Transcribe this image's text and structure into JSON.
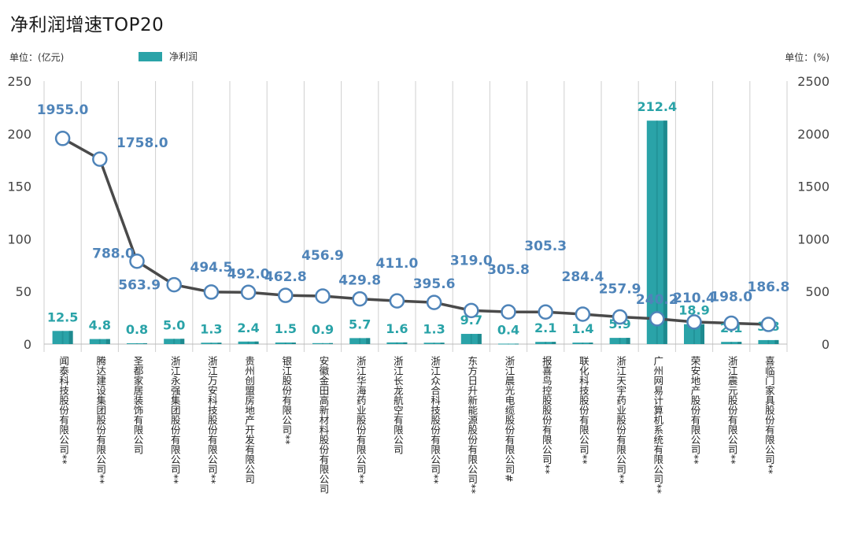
{
  "title": "净利润增速TOP20",
  "unit_left": "单位：(亿元)",
  "unit_right": "单位：(%)",
  "legend_label": "净利润",
  "colors": {
    "bar": "#2aa3a8",
    "bar_side": "#1e8a8f",
    "line": "#4a4a4a",
    "line_label": "#4f84b9",
    "grid": "#cfcfcf"
  },
  "chart_data": {
    "type": "bar",
    "title": "净利润增速TOP20",
    "categories": [
      "闻泰科技股份有限公司**",
      "腾达建设集团股份有限公司**",
      "圣都家居装饰有限公司",
      "浙江永强集团股份有限公司**",
      "浙江万安科技股份有限公司**",
      "贵州创盟房地产开发有限公司",
      "银江股份有限公司**",
      "安徽金田高新材料股份有限公司",
      "浙江华海药业股份有限公司**",
      "浙江长龙航空有限公司",
      "浙江众合科技股份有限公司**",
      "东方日升新能源股份有限公司**",
      "浙江晨光电缆股份有限公司#",
      "报喜鸟控股股份有限公司**",
      "联化科技股份有限公司**",
      "浙江天宇药业股份有限公司**",
      "广州网易计算机系统有限公司**",
      "荣安地产股份有限公司**",
      "浙江震元股份有限公司**",
      "喜临门家具股份有限公司**"
    ],
    "series": [
      {
        "name": "净利润",
        "type": "bar",
        "axis": "left",
        "values": [
          12.5,
          4.8,
          0.8,
          5.0,
          1.3,
          2.4,
          1.5,
          0.9,
          5.7,
          1.6,
          1.3,
          9.7,
          0.4,
          2.1,
          1.4,
          5.9,
          212.4,
          18.9,
          2.1,
          3.8
        ],
        "labels": [
          "12.5",
          "4.8",
          "0.8",
          "5.0",
          "1.3",
          "2.4",
          "1.5",
          "0.9",
          "5.7",
          "1.6",
          "1.3",
          "9.7",
          "0.4",
          "2.1",
          "1.4",
          "5.9",
          "212.4",
          "18.9",
          "2.1",
          "3.8"
        ]
      },
      {
        "type": "line",
        "axis": "right",
        "values": [
          1955.0,
          1758.0,
          788.0,
          563.9,
          494.5,
          492.0,
          462.8,
          456.9,
          429.8,
          411.0,
          395.6,
          319.0,
          305.8,
          305.3,
          284.4,
          257.9,
          240.2,
          210.4,
          198.0,
          186.8
        ],
        "labels": [
          "1955.0",
          "1758.0",
          "788.0",
          "563.9",
          "494.5",
          "492.0",
          "462.8",
          "456.9",
          "429.8",
          "411.0",
          "395.6",
          "319.0",
          "305.8",
          "305.3",
          "284.4",
          "257.9",
          "240.2",
          "210.4",
          "198.0",
          "186.8"
        ]
      }
    ],
    "left_axis": {
      "ylim": [
        0,
        250
      ],
      "ticks": [
        "0",
        "50",
        "100",
        "150",
        "200",
        "250"
      ]
    },
    "right_axis": {
      "ylim": [
        0,
        2500
      ],
      "ticks": [
        "0",
        "500",
        "1000",
        "1500",
        "2000",
        "2500"
      ]
    },
    "grid": "vertical"
  }
}
